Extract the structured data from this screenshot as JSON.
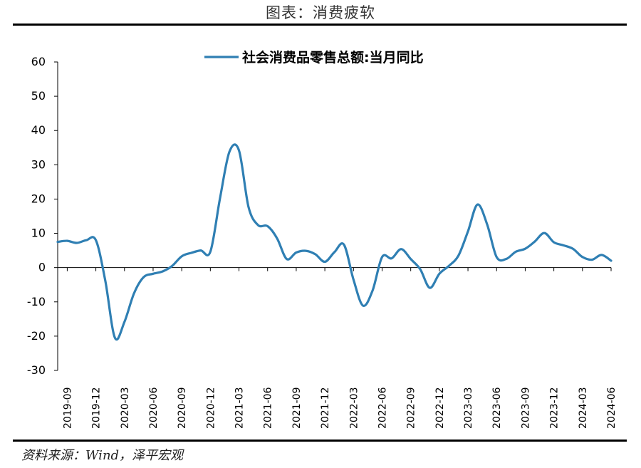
{
  "figure": {
    "title": "图表：消费疲软",
    "source": "资料来源：Wind，泽平宏观"
  },
  "chart_data": {
    "type": "line",
    "title": "",
    "xlabel": "",
    "ylabel": "",
    "ylim": [
      -30,
      60
    ],
    "yticks": [
      60,
      50,
      40,
      30,
      20,
      10,
      0,
      -10,
      -20,
      -30
    ],
    "grid": false,
    "legend_position": "top-center",
    "x_tick_labels": [
      "2019-09",
      "2019-12",
      "2020-03",
      "2020-06",
      "2020-09",
      "2020-12",
      "2021-03",
      "2021-06",
      "2021-09",
      "2021-12",
      "2022-03",
      "2022-06",
      "2022-09",
      "2022-12",
      "2023-03",
      "2023-06",
      "2023-09",
      "2023-12",
      "2024-03",
      "2024-06"
    ],
    "x": [
      "2019-08",
      "2019-09",
      "2019-10",
      "2019-11",
      "2019-12",
      "2020-01",
      "2020-02",
      "2020-03",
      "2020-04",
      "2020-05",
      "2020-06",
      "2020-07",
      "2020-08",
      "2020-09",
      "2020-10",
      "2020-11",
      "2020-12",
      "2021-01",
      "2021-02",
      "2021-03",
      "2021-04",
      "2021-05",
      "2021-06",
      "2021-07",
      "2021-08",
      "2021-09",
      "2021-10",
      "2021-11",
      "2021-12",
      "2022-01",
      "2022-02",
      "2022-03",
      "2022-04",
      "2022-05",
      "2022-06",
      "2022-07",
      "2022-08",
      "2022-09",
      "2022-10",
      "2022-11",
      "2022-12",
      "2023-01",
      "2023-02",
      "2023-03",
      "2023-04",
      "2023-05",
      "2023-06",
      "2023-07",
      "2023-08",
      "2023-09",
      "2023-10",
      "2023-11",
      "2023-12",
      "2024-01",
      "2024-02",
      "2024-03",
      "2024-04",
      "2024-05",
      "2024-06"
    ],
    "series": [
      {
        "name": "社会消费品零售总额:当月同比",
        "color": "#2f7fb3",
        "values": [
          7.5,
          7.8,
          7.2,
          8.0,
          8.0,
          -4.0,
          -20.5,
          -15.8,
          -7.5,
          -2.8,
          -1.8,
          -1.1,
          0.5,
          3.3,
          4.3,
          5.0,
          4.6,
          20.0,
          33.8,
          34.2,
          17.7,
          12.4,
          12.1,
          8.5,
          2.5,
          4.4,
          4.9,
          3.9,
          1.7,
          4.5,
          6.7,
          -3.5,
          -11.1,
          -6.7,
          3.1,
          2.7,
          5.4,
          2.5,
          -0.5,
          -5.9,
          -1.8,
          0.5,
          3.5,
          10.6,
          18.4,
          12.7,
          3.1,
          2.5,
          4.6,
          5.5,
          7.6,
          10.1,
          7.4,
          6.5,
          5.5,
          3.1,
          2.3,
          3.7,
          2.0
        ]
      }
    ]
  }
}
